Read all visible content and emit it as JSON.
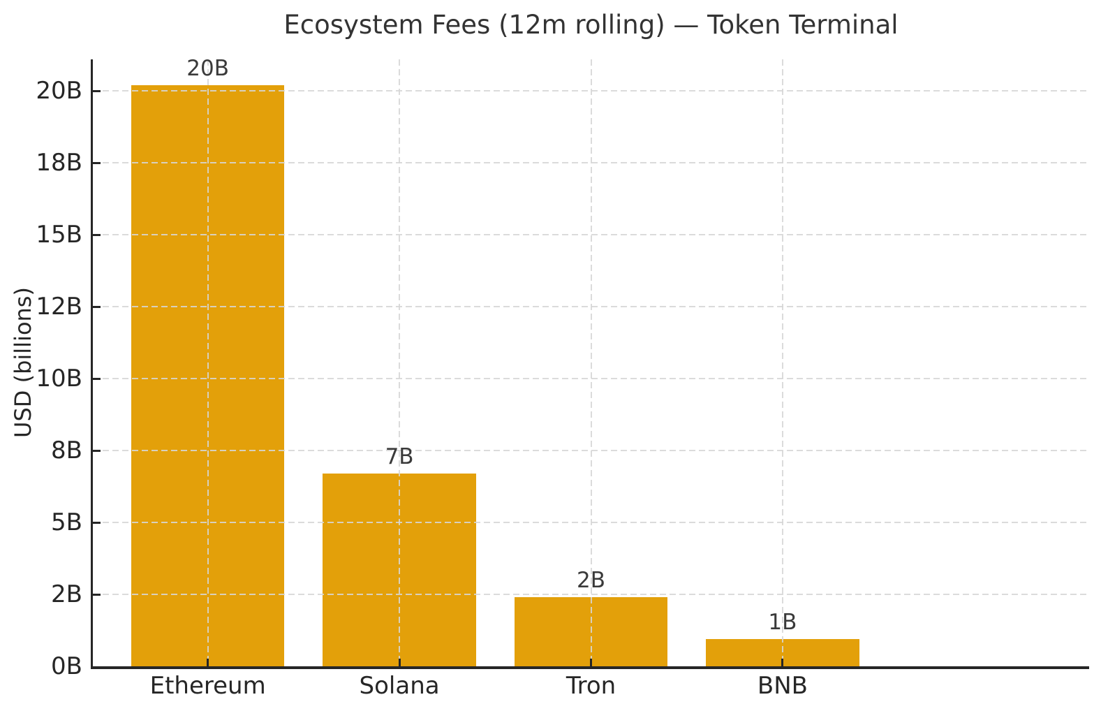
{
  "chart_data": {
    "type": "bar",
    "title": "Ecosystem Fees (12m rolling) — Token Terminal",
    "ylabel": "USD (billions)",
    "xlabel": "",
    "categories": [
      "Ethereum",
      "Solana",
      "Tron",
      "BNB"
    ],
    "values": [
      20.2,
      6.7,
      2.4,
      0.95
    ],
    "bar_value_labels": [
      "20B",
      "7B",
      "2B",
      "1B"
    ],
    "yticks": [
      {
        "value": 0,
        "label": "0B"
      },
      {
        "value": 2.5,
        "label": "2B"
      },
      {
        "value": 5,
        "label": "5B"
      },
      {
        "value": 7.5,
        "label": "8B"
      },
      {
        "value": 10,
        "label": "10B"
      },
      {
        "value": 12.5,
        "label": "12B"
      },
      {
        "value": 15,
        "label": "15B"
      },
      {
        "value": 17.5,
        "label": "18B"
      },
      {
        "value": 20,
        "label": "20B"
      }
    ],
    "ylim": [
      0,
      21.1
    ],
    "bar_color": "#e3a00a",
    "grid": {
      "style": "dashed",
      "axes": "both",
      "color": "#d6d6d6"
    },
    "axis_color": "#262626",
    "legend": "none"
  }
}
